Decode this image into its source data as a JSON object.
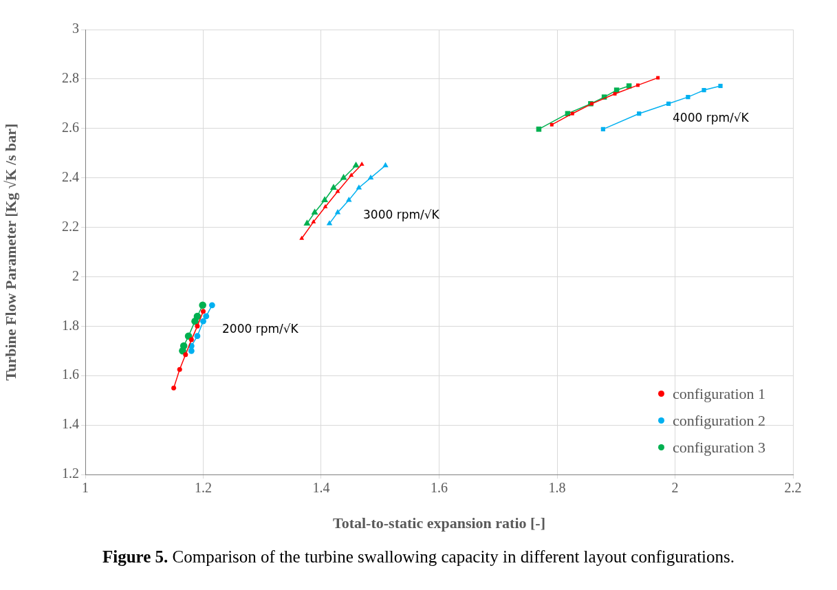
{
  "chart_data": {
    "type": "line",
    "xlabel": "Total-to-static expansion ratio [-]",
    "ylabel": "Turbine Flow Parameter [Kg √K /s bar]",
    "xlim": [
      1,
      2.2
    ],
    "xticks": [
      1,
      1.2,
      1.4,
      1.6,
      1.8,
      2,
      2.2
    ],
    "ylim": [
      1.2,
      3
    ],
    "yticks": [
      1.2,
      1.4,
      1.6,
      1.8,
      2,
      2.2,
      2.4,
      2.6,
      2.8,
      3
    ],
    "grid": true,
    "legend": "bottom right",
    "line_style": "solid",
    "series": [
      {
        "name": "configuration 1",
        "color": "#ff0000",
        "marker": "circle",
        "x": [
          1.15,
          1.16,
          1.17,
          1.18,
          1.19,
          1.2
        ],
        "values": [
          1.55,
          1.625,
          1.685,
          1.745,
          1.8,
          1.86
        ]
      },
      {
        "name": "configuration 2",
        "color": "#00b0f0",
        "marker": "circle",
        "x": [
          1.18,
          1.18,
          1.19,
          1.2,
          1.205,
          1.215
        ],
        "values": [
          1.7,
          1.72,
          1.76,
          1.82,
          1.84,
          1.885
        ]
      },
      {
        "name": "configuration 3",
        "color": "#00b050",
        "marker": "circle",
        "x": [
          1.165,
          1.167,
          1.175,
          1.186,
          1.19,
          1.199
        ],
        "values": [
          1.7,
          1.72,
          1.76,
          1.82,
          1.84,
          1.885
        ]
      },
      {
        "color": "#ff0000",
        "marker": "triangle",
        "x": [
          1.367,
          1.387,
          1.407,
          1.428,
          1.451,
          1.469
        ],
        "values": [
          2.155,
          2.222,
          2.283,
          2.345,
          2.41,
          2.455
        ]
      },
      {
        "color": "#00b0f0",
        "marker": "triangle",
        "x": [
          1.414,
          1.428,
          1.447,
          1.464,
          1.484,
          1.509
        ],
        "values": [
          2.215,
          2.26,
          2.31,
          2.36,
          2.4,
          2.45
        ]
      },
      {
        "color": "#00b050",
        "marker": "triangle",
        "x": [
          1.376,
          1.389,
          1.406,
          1.421,
          1.438,
          1.459
        ],
        "values": [
          2.215,
          2.26,
          2.31,
          2.36,
          2.4,
          2.45
        ]
      },
      {
        "color": "#ff0000",
        "marker": "square",
        "x": [
          1.791,
          1.826,
          1.859,
          1.898,
          1.937,
          1.971
        ],
        "values": [
          2.615,
          2.66,
          2.7,
          2.74,
          2.775,
          2.805
        ]
      },
      {
        "color": "#00b0f0",
        "marker": "square",
        "x": [
          1.878,
          1.939,
          1.989,
          2.022,
          2.049,
          2.077
        ],
        "values": [
          2.597,
          2.66,
          2.7,
          2.727,
          2.755,
          2.772
        ]
      },
      {
        "color": "#00b050",
        "marker": "square",
        "x": [
          1.769,
          1.818,
          1.857,
          1.88,
          1.901,
          1.922
        ],
        "values": [
          2.597,
          2.66,
          2.7,
          2.727,
          2.755,
          2.772
        ]
      }
    ],
    "annotations": [
      "2000 rpm/√K",
      "3000 rpm/√K",
      "4000 rpm/√K",
      "Figure 5. Comparison of the turbine swallowing capacity in different layout configurations."
    ]
  }
}
